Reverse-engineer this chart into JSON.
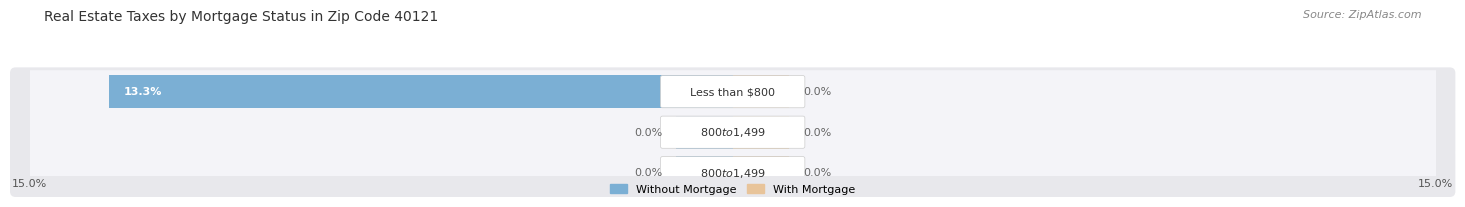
{
  "title": "Real Estate Taxes by Mortgage Status in Zip Code 40121",
  "source": "Source: ZipAtlas.com",
  "rows": [
    {
      "label": "Less than $800",
      "without_mortgage": 13.3,
      "with_mortgage": 0.0
    },
    {
      "label": "$800 to $1,499",
      "without_mortgage": 0.0,
      "with_mortgage": 0.0
    },
    {
      "label": "$800 to $1,499",
      "without_mortgage": 0.0,
      "with_mortgage": 0.0
    }
  ],
  "x_max": 15.0,
  "color_without": "#7bafd4",
  "color_with": "#e8c49a",
  "row_bg_color": "#e8e8ec",
  "row_inner_bg": "#f4f4f8",
  "label_box_color": "#ffffff",
  "title_fontsize": 10,
  "source_fontsize": 8,
  "label_fontsize": 8,
  "pct_fontsize": 8,
  "tick_fontsize": 8,
  "legend_fontsize": 8,
  "without_pct_color": "#ffffff",
  "pct_color": "#666666"
}
